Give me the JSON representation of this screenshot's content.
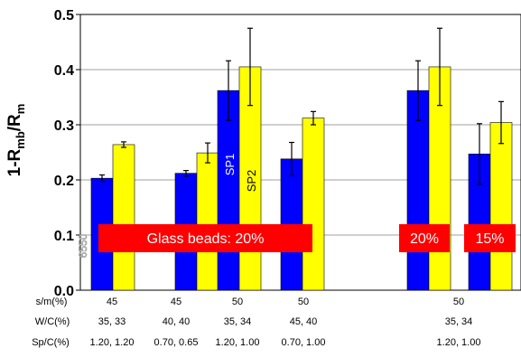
{
  "chart_data": {
    "type": "bar",
    "ylabel": "1-R",
    "ylabel_sub1": "mb",
    "ylabel_mid": "/R",
    "ylabel_sub2": "m",
    "ylim": [
      0,
      0.5
    ],
    "yticks": [
      "0.0",
      "0.1",
      "0.2",
      "0.3",
      "0.4",
      "0.5"
    ],
    "grid": true,
    "series_colors": [
      "#0000ff",
      "#ffff00"
    ],
    "groups": [
      {
        "values": [
          0.203,
          0.264
        ],
        "errors": [
          0.006,
          0.005
        ]
      },
      {
        "values": [
          0.212,
          0.249
        ],
        "errors": [
          0.005,
          0.018
        ]
      },
      {
        "values": [
          0.362,
          0.405
        ],
        "errors": [
          0.054,
          0.07
        ]
      },
      {
        "values": [
          0.238,
          0.312
        ],
        "errors": [
          0.03,
          0.012
        ]
      },
      {
        "values": [
          0.362,
          0.405
        ],
        "errors": [
          0.054,
          0.07
        ]
      },
      {
        "values": [
          0.247,
          0.304
        ],
        "errors": [
          0.055,
          0.038
        ]
      }
    ],
    "bar_labels": [
      "SP1",
      "SP2"
    ],
    "annotations": [
      "Glass beads: 20%",
      "20%",
      "15%"
    ],
    "faint_mark": "6550",
    "table_rows": [
      {
        "label": "s/m(%)",
        "values": [
          "45",
          "45",
          "50",
          "50",
          "50"
        ]
      },
      {
        "label": "W/C(%)",
        "values": [
          "35, 33",
          "40, 40",
          "35, 34",
          "45, 40",
          "35, 34"
        ]
      },
      {
        "label": "Sp/C(%)",
        "values": [
          "1.20, 1.20",
          "0.70, 0.65",
          "1.20, 1.00",
          "0.70, 1.00",
          "1.20, 1.00"
        ]
      }
    ]
  }
}
